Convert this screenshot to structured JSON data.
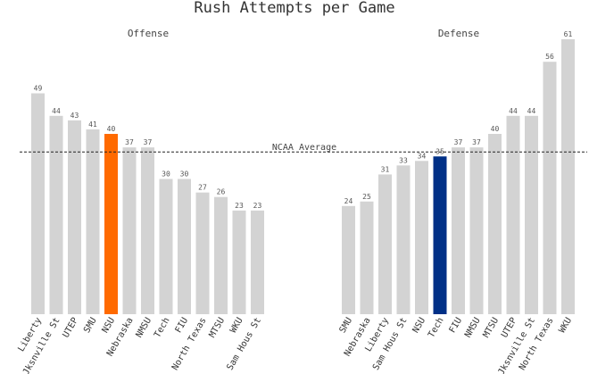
{
  "chart_data": [
    {
      "type": "bar",
      "title": "Rush Attempts per Game",
      "subtitle": "Offense",
      "categories": [
        "Liberty",
        "Jksnville St",
        "UTEP",
        "SMU",
        "NSU",
        "Nebraska",
        "NMSU",
        "Tech",
        "FIU",
        "North Texas",
        "MTSU",
        "WKU",
        "Sam Hous St"
      ],
      "values": [
        49,
        44,
        43,
        41,
        40,
        37,
        37,
        30,
        30,
        27,
        26,
        23,
        23
      ],
      "highlight": "NSU",
      "highlight_color": "#ff6a00",
      "bar_color": "#d3d3d3",
      "reference_line": {
        "label": "NCAA Average",
        "value": 36
      },
      "ylim": [
        0,
        64
      ],
      "grid": false
    },
    {
      "type": "bar",
      "subtitle": "Defense",
      "categories": [
        "SMU",
        "Nebraska",
        "Liberty",
        "Sam Hous St",
        "NSU",
        "Tech",
        "FIU",
        "NMSU",
        "MTSU",
        "UTEP",
        "Jksnville St",
        "North Texas",
        "WKU"
      ],
      "values": [
        24,
        25,
        31,
        33,
        34,
        35,
        37,
        37,
        40,
        44,
        44,
        56,
        61
      ],
      "highlight": "Tech",
      "highlight_color": "#003087",
      "bar_color": "#d3d3d3",
      "reference_line": {
        "label": "NCAA Average",
        "value": 36
      },
      "ylim": [
        0,
        64
      ],
      "grid": false
    }
  ]
}
